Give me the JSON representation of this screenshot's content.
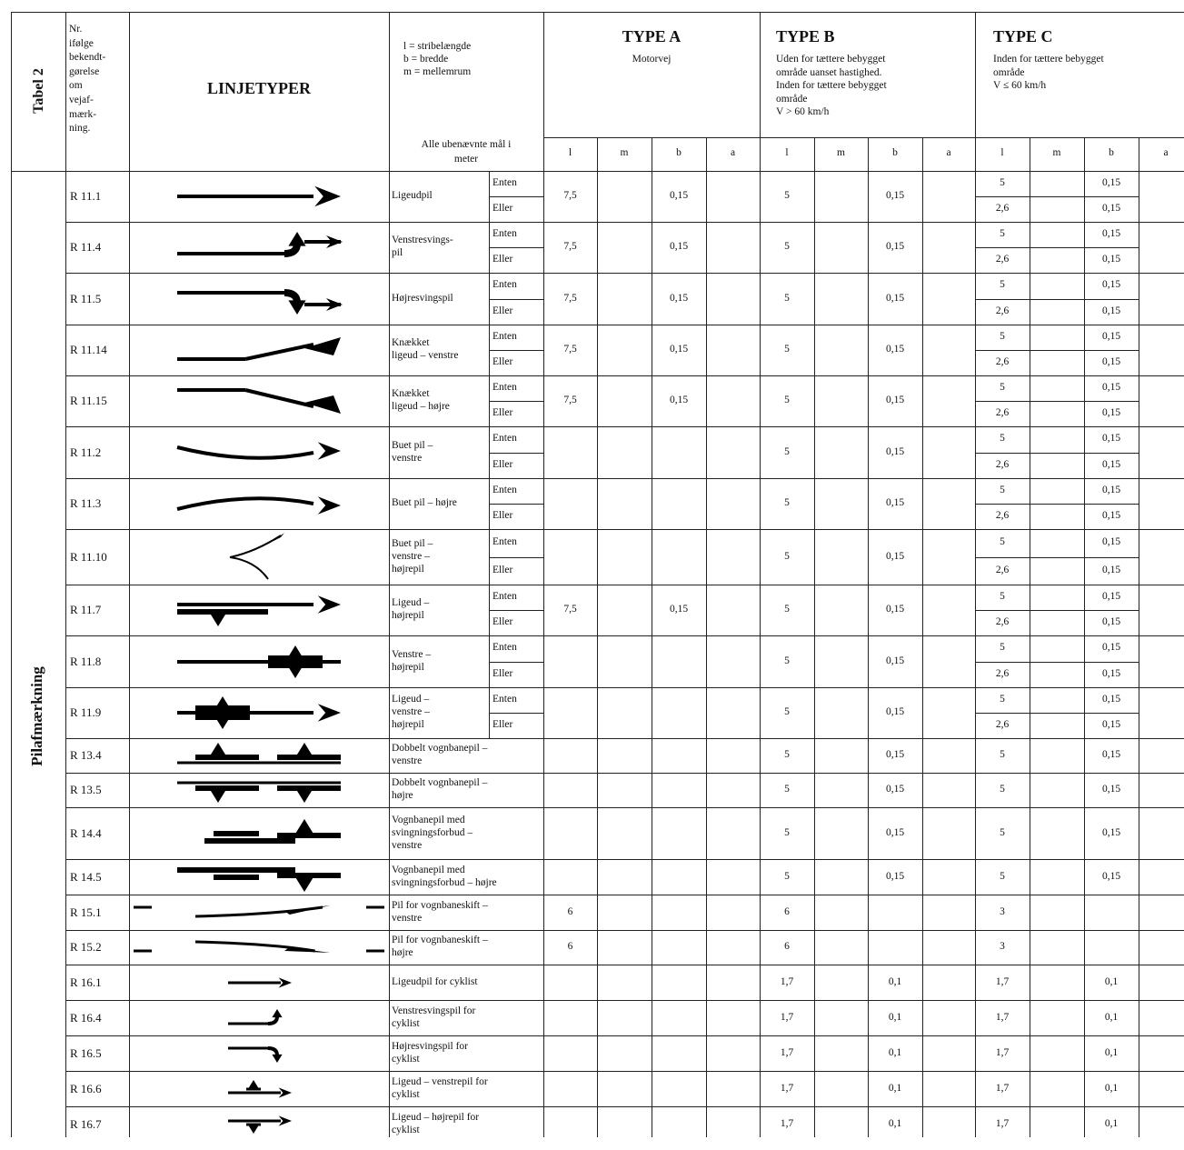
{
  "table": {
    "table_label": "Tabel 2",
    "category_label": "Pilafmærkning",
    "nr_header": [
      "Nr.",
      "ifølge",
      "bekendt-",
      "gørelse",
      "om",
      "vejaf-",
      "mærk-",
      "ning."
    ],
    "linjetyper_header": "LINJETYPER",
    "legend_lines": [
      "l = stribelængde",
      "b = bredde",
      "m = mellemrum"
    ],
    "unit_note_lines": [
      "Alle ubenævnte mål i",
      "meter"
    ],
    "type_a": {
      "title": "TYPE A",
      "lines": [
        "Motorvej"
      ]
    },
    "type_b": {
      "title": "TYPE B",
      "lines": [
        "Uden for tættere bebygget",
        "område uanset hastighed.",
        "Inden for tættere bebygget",
        "område",
        "V > 60 km/h"
      ]
    },
    "type_c": {
      "title": "TYPE C",
      "lines": [
        "Inden for tættere bebygget",
        "område",
        "V ≤ 60 km/h"
      ]
    },
    "sub_headers": [
      "l",
      "m",
      "b",
      "a"
    ],
    "either_label": "Enten",
    "or_label": "Eller",
    "rows": [
      {
        "nr": "R 11.1",
        "icon": "straight-arrow-icon",
        "desc": [
          "Ligeudpil"
        ],
        "split": true,
        "a": [
          "7,5",
          "0,15"
        ],
        "b": [
          "5",
          "0,15"
        ],
        "c": [
          [
            "5",
            "0,15"
          ],
          [
            "2,6",
            "0,15"
          ]
        ]
      },
      {
        "nr": "R 11.4",
        "icon": "left-turn-arrow-icon",
        "desc": [
          "Venstresvings-",
          "pil"
        ],
        "split": true,
        "a": [
          "7,5",
          "0,15"
        ],
        "b": [
          "5",
          "0,15"
        ],
        "c": [
          [
            "5",
            "0,15"
          ],
          [
            "2,6",
            "0,15"
          ]
        ]
      },
      {
        "nr": "R 11.5",
        "icon": "right-turn-arrow-icon",
        "desc": [
          "Højresvingspil"
        ],
        "split": true,
        "a": [
          "7,5",
          "0,15"
        ],
        "b": [
          "5",
          "0,15"
        ],
        "c": [
          [
            "5",
            "0,15"
          ],
          [
            "2,6",
            "0,15"
          ]
        ]
      },
      {
        "nr": "R 11.14",
        "icon": "kinked-left-arrow-icon",
        "desc": [
          "Knækket",
          "ligeud – venstre"
        ],
        "split": true,
        "a": [
          "7,5",
          "0,15"
        ],
        "b": [
          "5",
          "0,15"
        ],
        "c": [
          [
            "5",
            "0,15"
          ],
          [
            "2,6",
            "0,15"
          ]
        ]
      },
      {
        "nr": "R 11.15",
        "icon": "kinked-right-arrow-icon",
        "desc": [
          "Knækket",
          "ligeud – højre"
        ],
        "split": true,
        "a": [
          "7,5",
          "0,15"
        ],
        "b": [
          "5",
          "0,15"
        ],
        "c": [
          [
            "5",
            "0,15"
          ],
          [
            "2,6",
            "0,15"
          ]
        ]
      },
      {
        "nr": "R 11.2",
        "icon": "curved-left-arrow-icon",
        "desc": [
          "Buet pil –",
          "venstre"
        ],
        "split": true,
        "a": null,
        "b": [
          "5",
          "0,15"
        ],
        "c": [
          [
            "5",
            "0,15"
          ],
          [
            "2,6",
            "0,15"
          ]
        ]
      },
      {
        "nr": "R 11.3",
        "icon": "curved-right-arrow-icon",
        "desc": [
          "Buet pil – højre"
        ],
        "split": true,
        "a": null,
        "b": [
          "5",
          "0,15"
        ],
        "c": [
          [
            "5",
            "0,15"
          ],
          [
            "2,6",
            "0,15"
          ]
        ]
      },
      {
        "nr": "R 11.10",
        "icon": "split-curved-arrow-icon",
        "desc": [
          "Buet pil –",
          "venstre –",
          "højrepil"
        ],
        "split": true,
        "a": null,
        "b": [
          "5",
          "0,15"
        ],
        "c": [
          [
            "5",
            "0,15"
          ],
          [
            "2,6",
            "0,15"
          ]
        ]
      },
      {
        "nr": "R 11.7",
        "icon": "straight-right-arrow-icon",
        "desc": [
          "Ligeud –",
          "højrepil"
        ],
        "split": true,
        "a": [
          "7,5",
          "0,15"
        ],
        "b": [
          "5",
          "0,15"
        ],
        "c": [
          [
            "5",
            "0,15"
          ],
          [
            "2,6",
            "0,15"
          ]
        ]
      },
      {
        "nr": "R 11.8",
        "icon": "left-right-arrow-icon",
        "desc": [
          "Venstre –",
          "højrepil"
        ],
        "split": true,
        "a": null,
        "b": [
          "5",
          "0,15"
        ],
        "c": [
          [
            "5",
            "0,15"
          ],
          [
            "2,6",
            "0,15"
          ]
        ]
      },
      {
        "nr": "R 11.9",
        "icon": "three-way-arrow-icon",
        "desc": [
          "Ligeud –",
          "venstre –",
          "højrepil"
        ],
        "split": true,
        "a": null,
        "b": [
          "5",
          "0,15"
        ],
        "c": [
          [
            "5",
            "0,15"
          ],
          [
            "2,6",
            "0,15"
          ]
        ]
      },
      {
        "nr": "R 13.4",
        "icon": "double-lane-left-arrow-icon",
        "desc": [
          "Dobbelt vognbanepil –",
          "venstre"
        ],
        "split": false,
        "a": null,
        "b": [
          "5",
          "0,15"
        ],
        "c": [
          [
            "5",
            "0,15"
          ]
        ]
      },
      {
        "nr": "R 13.5",
        "icon": "double-lane-right-arrow-icon",
        "desc": [
          "Dobbelt vognbanepil –",
          "højre"
        ],
        "split": false,
        "a": null,
        "b": [
          "5",
          "0,15"
        ],
        "c": [
          [
            "5",
            "0,15"
          ]
        ]
      },
      {
        "nr": "R 14.4",
        "icon": "lane-no-turn-left-arrow-icon",
        "desc": [
          "Vognbanepil med",
          "svingningsforbud –",
          "venstre"
        ],
        "split": false,
        "a": null,
        "b": [
          "5",
          "0,15"
        ],
        "c": [
          [
            "5",
            "0,15"
          ]
        ]
      },
      {
        "nr": "R 14.5",
        "icon": "lane-no-turn-right-arrow-icon",
        "desc": [
          "Vognbanepil med",
          "svingningsforbud – højre"
        ],
        "split": false,
        "a": null,
        "b": [
          "5",
          "0,15"
        ],
        "c": [
          [
            "5",
            "0,15"
          ]
        ]
      },
      {
        "nr": "R 15.1",
        "icon": "lane-change-left-arrow-icon",
        "desc": [
          "Pil for vognbaneskift –",
          "venstre"
        ],
        "split": false,
        "a": [
          "6",
          ""
        ],
        "b": [
          "6",
          ""
        ],
        "c": [
          [
            "3",
            ""
          ]
        ]
      },
      {
        "nr": "R 15.2",
        "icon": "lane-change-right-arrow-icon",
        "desc": [
          "Pil for vognbaneskift –",
          "højre"
        ],
        "split": false,
        "a": [
          "6",
          ""
        ],
        "b": [
          "6",
          ""
        ],
        "c": [
          [
            "3",
            ""
          ]
        ]
      },
      {
        "nr": "R 16.1",
        "icon": "cycle-straight-arrow-icon",
        "desc": [
          "Ligeudpil for cyklist"
        ],
        "split": false,
        "a": null,
        "b": [
          "1,7",
          "0,1"
        ],
        "c": [
          [
            "1,7",
            "0,1"
          ]
        ]
      },
      {
        "nr": "R 16.4",
        "icon": "cycle-left-turn-arrow-icon",
        "desc": [
          "Venstresvingspil for",
          "cyklist"
        ],
        "split": false,
        "a": null,
        "b": [
          "1,7",
          "0,1"
        ],
        "c": [
          [
            "1,7",
            "0,1"
          ]
        ]
      },
      {
        "nr": "R 16.5",
        "icon": "cycle-right-turn-arrow-icon",
        "desc": [
          "Højresvingspil for",
          "cyklist"
        ],
        "split": false,
        "a": null,
        "b": [
          "1,7",
          "0,1"
        ],
        "c": [
          [
            "1,7",
            "0,1"
          ]
        ]
      },
      {
        "nr": "R 16.6",
        "icon": "cycle-straight-left-arrow-icon",
        "desc": [
          "Ligeud – venstrepil for",
          "cyklist"
        ],
        "split": false,
        "a": null,
        "b": [
          "1,7",
          "0,1"
        ],
        "c": [
          [
            "1,7",
            "0,1"
          ]
        ]
      },
      {
        "nr": "R 16.7",
        "icon": "cycle-straight-right-arrow-icon",
        "desc": [
          "Ligeud – højrepil for",
          "cyklist"
        ],
        "split": false,
        "a": null,
        "b": [
          "1,7",
          "0,1"
        ],
        "c": [
          [
            "1,7",
            "0,1"
          ]
        ]
      }
    ]
  }
}
